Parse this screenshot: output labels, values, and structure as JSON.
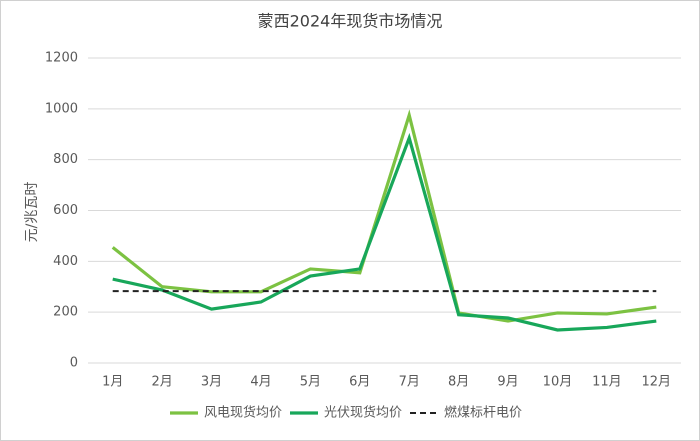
{
  "chart_data": {
    "type": "line",
    "title": "蒙西2024年现货市场情况",
    "y_label": "元/兆瓦时",
    "categories": [
      "1月",
      "2月",
      "3月",
      "4月",
      "5月",
      "6月",
      "7月",
      "8月",
      "9月",
      "10月",
      "11月",
      "12月"
    ],
    "series": [
      {
        "name": "风电现货均价",
        "color": "#7cc242",
        "dash": false,
        "values": [
          455,
          300,
          280,
          280,
          370,
          355,
          975,
          197,
          165,
          197,
          193,
          220
        ]
      },
      {
        "name": "光伏现货均价",
        "color": "#18a75a",
        "dash": false,
        "values": [
          330,
          287,
          212,
          240,
          342,
          370,
          885,
          190,
          177,
          130,
          140,
          165
        ]
      },
      {
        "name": "燃煤标杆电价",
        "color": "#222222",
        "dash": true,
        "values": [
          282.9,
          282.9,
          282.9,
          282.9,
          282.9,
          282.9,
          282.9,
          282.9,
          282.9,
          282.9,
          282.9,
          282.9
        ]
      }
    ],
    "ylim": [
      0,
      1200
    ],
    "yticks": [
      0,
      200,
      400,
      600,
      800,
      1000,
      1200
    ],
    "grid": true,
    "legend": "bottom"
  }
}
